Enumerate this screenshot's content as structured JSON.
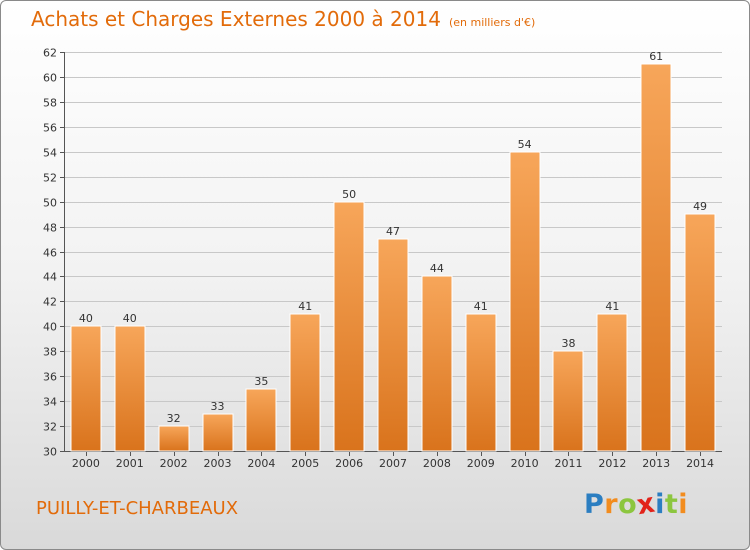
{
  "title": "Achats et Charges Externes 2000 à 2014",
  "unit": "(en milliers d'€)",
  "town": "PUILLY-ET-CHARBEAUX",
  "logo": {
    "letters": [
      "P",
      "r",
      "o",
      "x",
      "i",
      "t",
      "i"
    ],
    "colors": [
      "#2b7ec1",
      "#f28c1e",
      "#8cc63f",
      "#e2231a",
      "#2b7ec1",
      "#8cc63f",
      "#f28c1e"
    ]
  },
  "colors": {
    "accent": "#e26b0a",
    "bar_light": "#f7a65a",
    "bar_dark": "#d9731c",
    "grid": "#c8c8c8"
  },
  "chart_data": {
    "type": "bar",
    "title": "Achats et Charges Externes 2000 à 2014",
    "subtitle": "(en milliers d'€)",
    "xlabel": "",
    "ylabel": "",
    "categories": [
      "2000",
      "2001",
      "2002",
      "2003",
      "2004",
      "2005",
      "2006",
      "2007",
      "2008",
      "2009",
      "2010",
      "2011",
      "2012",
      "2013",
      "2014"
    ],
    "values": [
      40,
      40,
      32,
      33,
      35,
      41,
      50,
      47,
      44,
      41,
      54,
      38,
      41,
      61,
      49
    ],
    "ylim": [
      30,
      62
    ],
    "yticks": [
      30,
      32,
      34,
      36,
      38,
      40,
      42,
      44,
      46,
      48,
      50,
      52,
      54,
      56,
      58,
      60,
      62
    ],
    "grid": true,
    "data_labels": true
  }
}
